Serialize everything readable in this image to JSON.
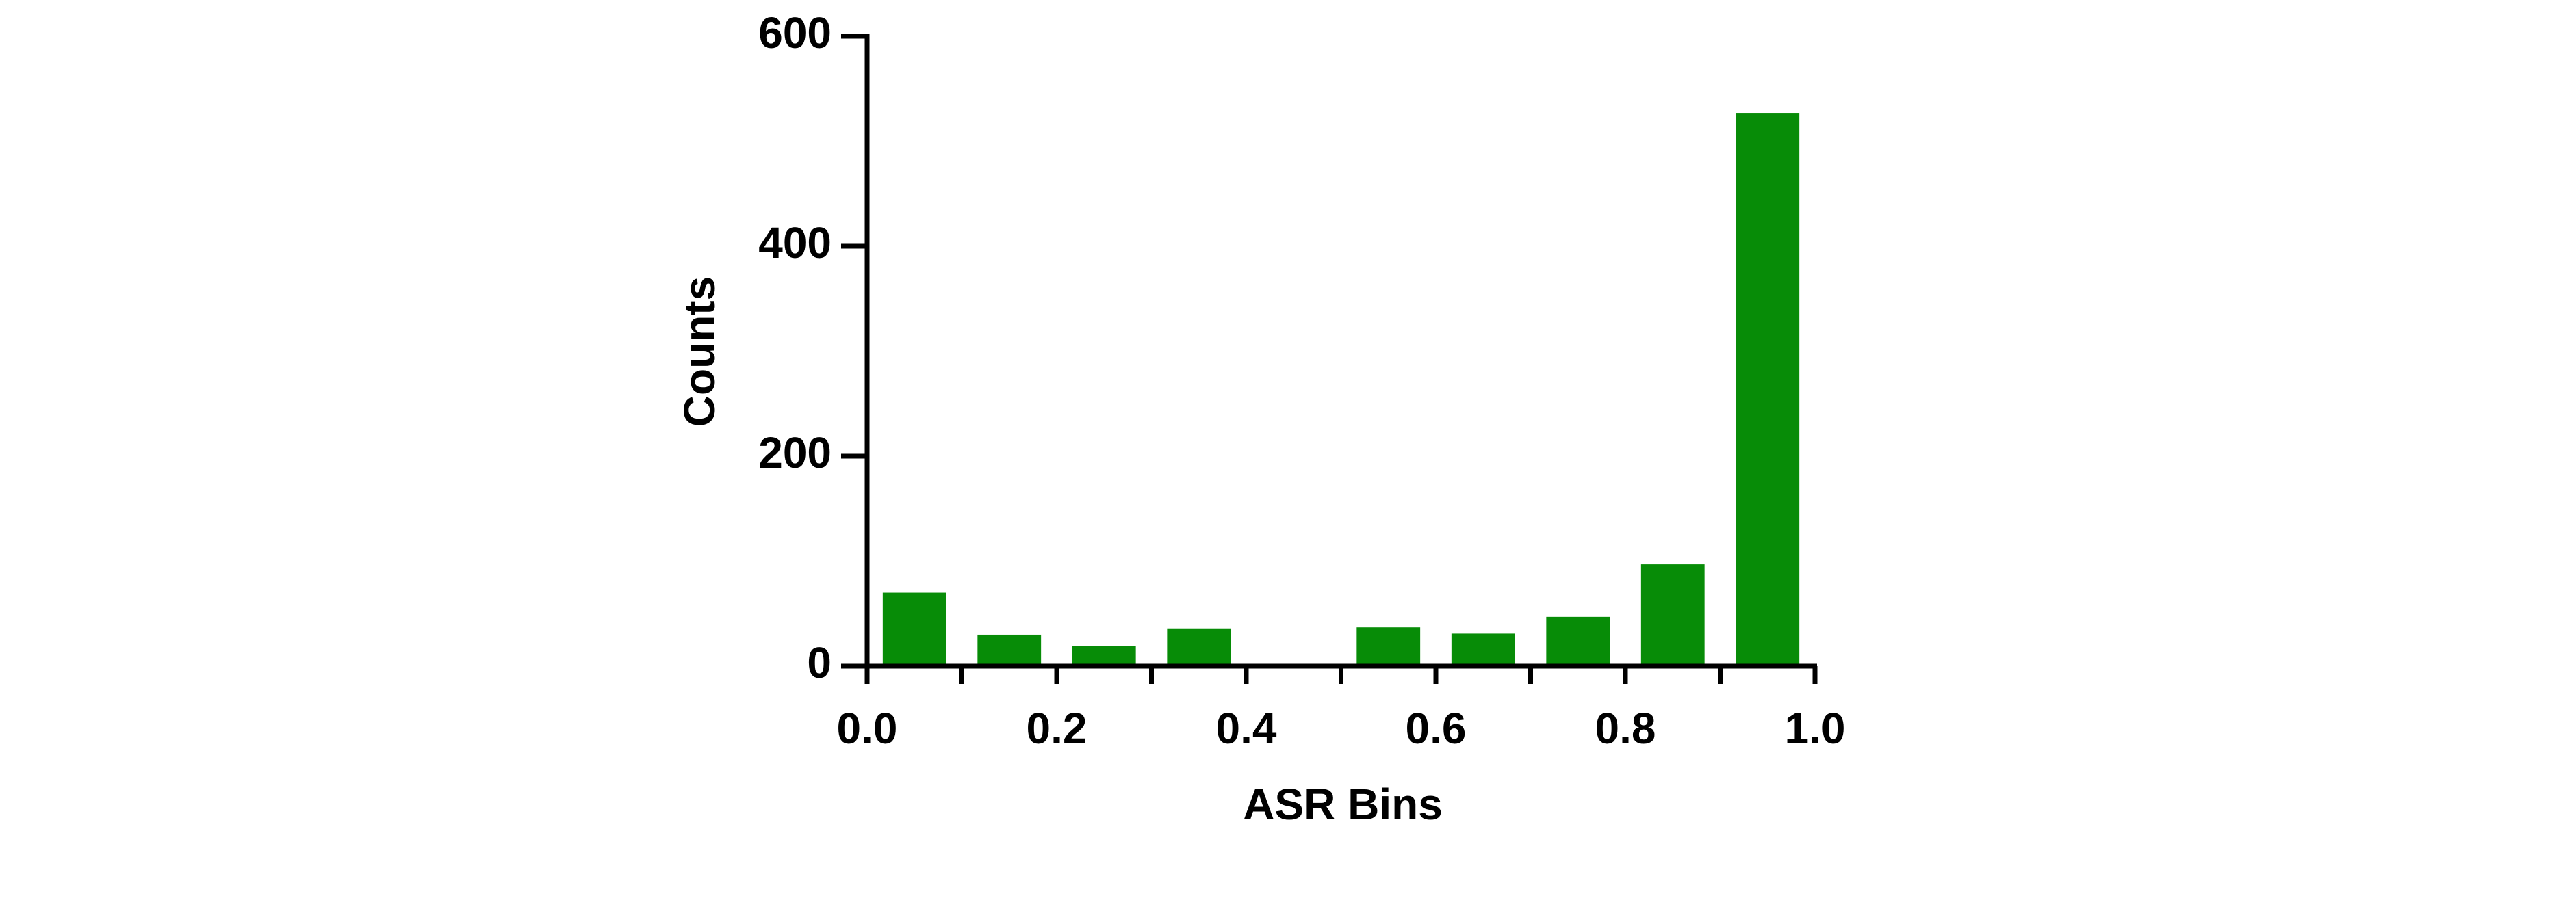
{
  "chart_data": {
    "type": "histogram",
    "xlabel": "ASR Bins",
    "ylabel": "Counts",
    "bins": [
      0,
      0.1,
      0.2,
      0.3,
      0.4,
      0.5,
      0.6,
      0.7,
      0.8,
      0.9,
      1.0
    ],
    "counts": [
      70,
      30,
      19,
      36,
      0,
      37,
      31,
      47,
      97,
      527
    ],
    "color": "#078c07",
    "xlim": [
      0,
      1.0
    ],
    "xticks": [
      {
        "value": 0,
        "label": "0.0"
      },
      {
        "value": 0.2,
        "label": "0.2"
      },
      {
        "value": 0.4,
        "label": "0.4"
      },
      {
        "value": 0.6,
        "label": "0.6"
      },
      {
        "value": 0.8,
        "label": "0.8"
      },
      {
        "value": 1.0,
        "label": "1.0"
      }
    ],
    "xminorticks": [
      0.1,
      0.3,
      0.5,
      0.7,
      0.9
    ],
    "ylim": [
      0,
      600
    ],
    "yticks": [
      0,
      200,
      400,
      600
    ]
  }
}
